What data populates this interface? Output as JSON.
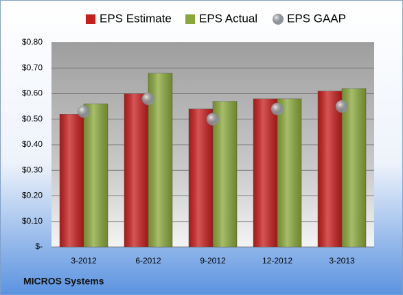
{
  "chart_data": {
    "type": "bar",
    "categories": [
      "3-2012",
      "6-2012",
      "9-2012",
      "12-2012",
      "3-2013"
    ],
    "series": [
      {
        "name": "EPS Estimate",
        "color": "#c81e1e",
        "values": [
          0.52,
          0.6,
          0.54,
          0.58,
          0.61
        ]
      },
      {
        "name": "EPS Actual",
        "color": "#8aa83a",
        "values": [
          0.56,
          0.68,
          0.57,
          0.58,
          0.62
        ]
      },
      {
        "name": "EPS GAAP",
        "color": "#a9b1ba",
        "values": [
          0.53,
          0.58,
          0.5,
          0.54,
          0.55
        ],
        "marker": "circle"
      }
    ],
    "ylim": [
      0,
      0.8
    ],
    "yticks": [
      {
        "value": 0,
        "label": "$-"
      },
      {
        "value": 0.1,
        "label": "$0.10"
      },
      {
        "value": 0.2,
        "label": "$0.20"
      },
      {
        "value": 0.3,
        "label": "$0.30"
      },
      {
        "value": 0.4,
        "label": "$0.40"
      },
      {
        "value": 0.5,
        "label": "$0.50"
      },
      {
        "value": 0.6,
        "label": "$0.60"
      },
      {
        "value": 0.7,
        "label": "$0.70"
      },
      {
        "value": 0.8,
        "label": "$0.80"
      }
    ],
    "grid": true,
    "legend": "top",
    "caption": "MICROS Systems"
  }
}
